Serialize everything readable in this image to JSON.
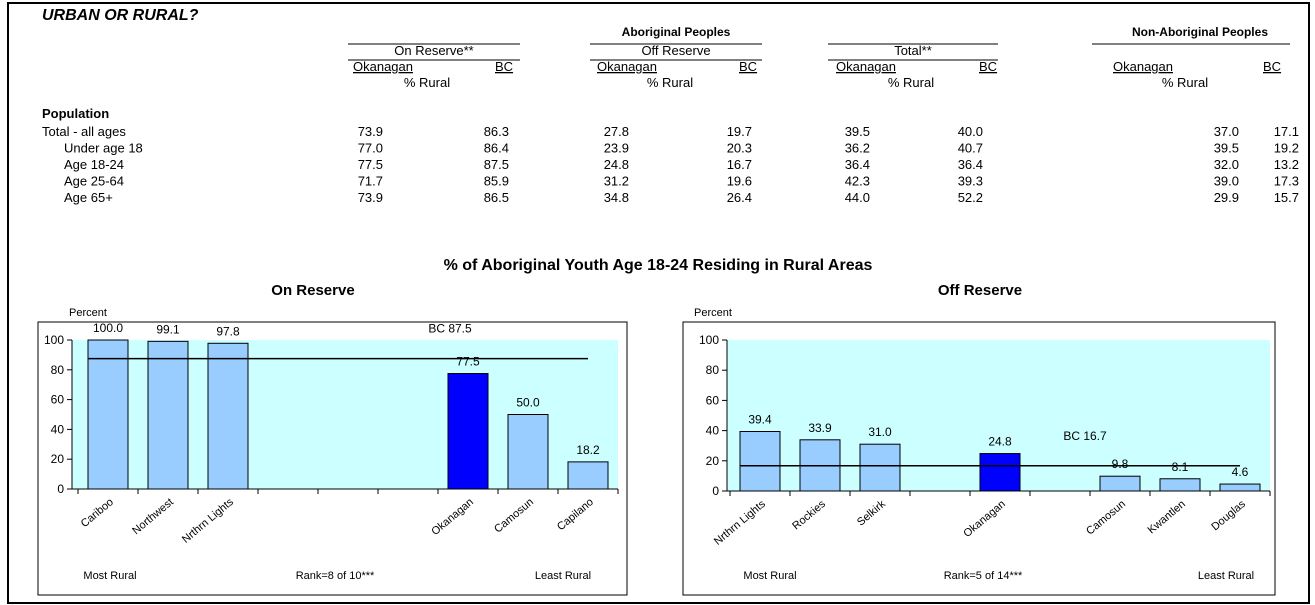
{
  "table": {
    "title": "URBAN OR RURAL?",
    "groups": [
      "Aboriginal Peoples",
      "Non-Aboriginal Peoples"
    ],
    "subgroups": [
      "On Reserve**",
      "Off Reserve",
      "Total**"
    ],
    "columns": [
      "Okanagan",
      "BC",
      "Okanagan",
      "BC",
      "Okanagan",
      "BC",
      "Okanagan",
      "BC"
    ],
    "unit_labels": [
      "% Rural",
      "% Rural",
      "% Rural",
      "% Rural"
    ],
    "section": "Population",
    "rows": [
      [
        "Total - all ages",
        "73.9",
        "86.3",
        "27.8",
        "19.7",
        "39.5",
        "40.0",
        "37.0",
        "17.1"
      ],
      [
        "Under age 18",
        "77.0",
        "86.4",
        "23.9",
        "20.3",
        "36.2",
        "40.7",
        "39.5",
        "19.2"
      ],
      [
        "Age 18-24",
        "77.5",
        "87.5",
        "24.8",
        "16.7",
        "36.4",
        "36.4",
        "32.0",
        "13.2"
      ],
      [
        "Age 25-64",
        "71.7",
        "85.9",
        "31.2",
        "19.6",
        "42.3",
        "39.3",
        "39.0",
        "17.3"
      ],
      [
        "Age 65+",
        "73.9",
        "86.5",
        "34.8",
        "26.4",
        "44.0",
        "52.2",
        "29.9",
        "15.7"
      ]
    ]
  },
  "charts_title": "% of Aboriginal Youth Age 18-24 Residing in Rural Areas",
  "chart_data": [
    {
      "type": "bar",
      "title": "On Reserve",
      "ylabel": "Percent",
      "categories": [
        "Cariboo",
        "Northwest",
        "Nrthrn Lights",
        null,
        null,
        null,
        "Okanagan",
        "Camosun",
        "Capilano"
      ],
      "values": [
        100.0,
        99.1,
        97.8,
        null,
        null,
        null,
        77.5,
        50.0,
        18.2
      ],
      "value_labels": [
        "100.0",
        "99.1",
        "97.8",
        null,
        null,
        null,
        "77.5",
        "50.0",
        "18.2"
      ],
      "colors": [
        "#99ccff",
        "#99ccff",
        "#99ccff",
        null,
        null,
        null,
        "#0000ff",
        "#99ccff",
        "#99ccff"
      ],
      "reference": {
        "value": 87.5,
        "label": "BC 87.5"
      },
      "ylim": [
        0,
        100
      ],
      "yticks": [
        0,
        20,
        40,
        60,
        80,
        100
      ],
      "notes": [
        "Most Rural",
        "Rank=8 of 10***",
        "Least Rural"
      ]
    },
    {
      "type": "bar",
      "title": "Off Reserve",
      "ylabel": "Percent",
      "categories": [
        "Nrthrn Lights",
        "Rockies",
        "Selkirk",
        null,
        "Okanagan",
        null,
        "Camosun",
        "Kwantlen",
        "Douglas"
      ],
      "values": [
        39.4,
        33.9,
        31.0,
        null,
        24.8,
        null,
        9.8,
        8.1,
        4.6
      ],
      "value_labels": [
        "39.4",
        "33.9",
        "31.0",
        null,
        "24.8",
        null,
        "9.8",
        "8.1",
        "4.6"
      ],
      "colors": [
        "#99ccff",
        "#99ccff",
        "#99ccff",
        null,
        "#0000ff",
        null,
        "#99ccff",
        "#99ccff",
        "#99ccff"
      ],
      "reference": {
        "value": 16.7,
        "label": "BC 16.7"
      },
      "ylim": [
        0,
        100
      ],
      "yticks": [
        0,
        20,
        40,
        60,
        80,
        100
      ],
      "notes": [
        "Most Rural",
        "Rank=5 of 14***",
        "Least Rural"
      ]
    }
  ]
}
